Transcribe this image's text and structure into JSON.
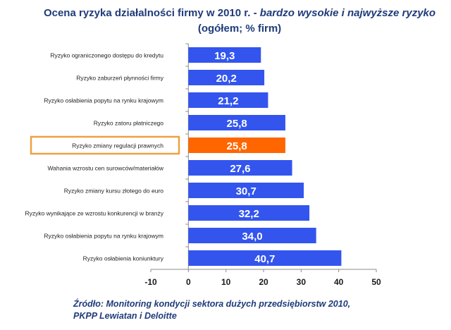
{
  "title": {
    "part1": "Ocena ryzyka działalności firmy w 2010 r. - ",
    "part2_italic": "bardzo wysokie i najwyższe ryzyko",
    "part3": " (ogółem; % firm)"
  },
  "source": {
    "line1": "Źródło:  Monitoring kondycji sektora dużych przedsiębiorstw 2010,",
    "line2": "PKPP Lewiatan i Deloitte"
  },
  "chart_data": {
    "type": "bar",
    "orientation": "horizontal",
    "categories": [
      "Ryzyko ograniczonego dostępu do kredytu",
      "Ryzyko zaburzeń płynności firmy",
      "Ryzyko osłabienia popytu na rynku krajowym",
      "Ryzyko zatoru płatniczego",
      "Ryzyko zmiany regulacji prawnych",
      "Wahania wzrostu cen surowców/materiałów",
      "Ryzyko zmiany kursu złotego do euro",
      "Ryzyko wynikające ze wzrostu konkurencji w branży",
      "Ryzyko osłabienia popytu na rynku krajowym",
      "Ryzyko osłabienia koniunktury"
    ],
    "values": [
      19.3,
      20.2,
      21.2,
      25.8,
      25.8,
      27.6,
      30.7,
      32.2,
      34.0,
      40.7
    ],
    "value_labels": [
      "19,3",
      "20,2",
      "21,2",
      "25,8",
      "25,8",
      "27,6",
      "30,7",
      "32,2",
      "34,0",
      "40,7"
    ],
    "highlight_index": 4,
    "xlim": [
      -10,
      50
    ],
    "xticks": [
      -10,
      0,
      10,
      20,
      30,
      40,
      50
    ],
    "bar_color": "#3355ee",
    "highlight_color": "#ff6600",
    "highlight_box_color": "#f0a040",
    "grid": false
  }
}
